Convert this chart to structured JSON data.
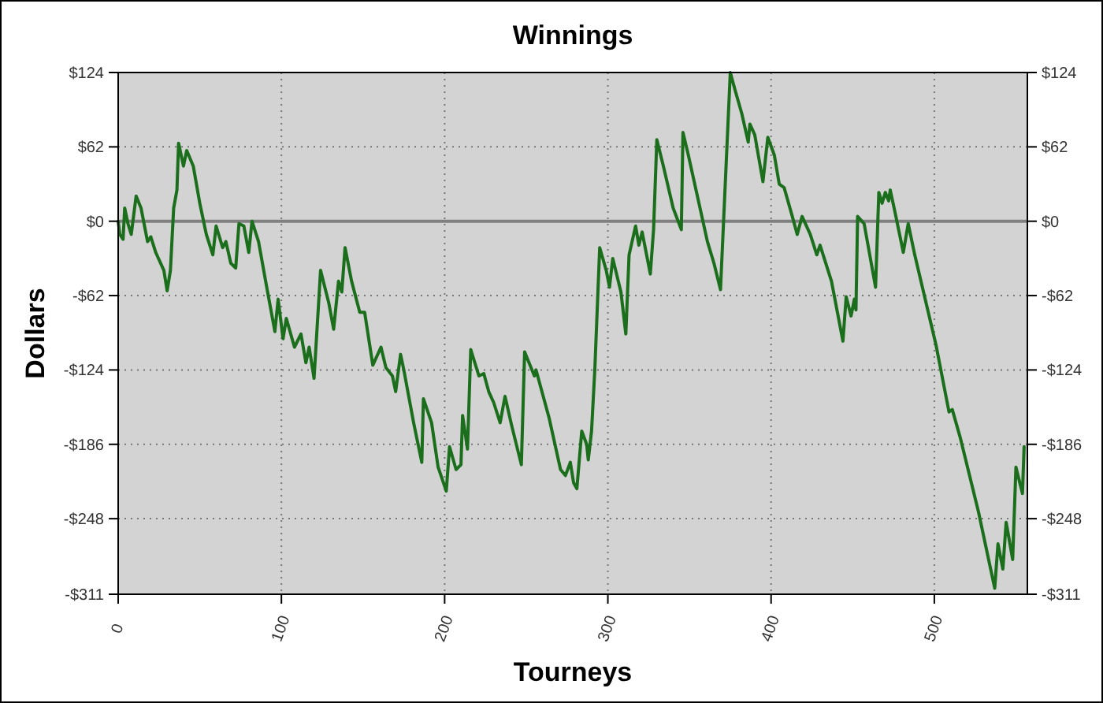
{
  "chart_data": {
    "type": "line",
    "title": "Winnings",
    "xlabel": "Tourneys",
    "ylabel": "Dollars",
    "x": [
      0,
      1,
      3,
      4,
      6,
      8,
      11,
      14,
      18,
      20,
      23,
      28,
      30,
      32,
      34,
      36,
      37,
      40,
      42,
      46,
      50,
      54,
      58,
      60,
      64,
      66,
      69,
      72,
      74,
      77,
      80,
      82,
      86,
      91,
      96,
      98,
      101,
      103,
      108,
      112,
      115,
      117,
      120,
      124,
      129,
      132,
      135,
      137,
      139,
      143,
      148,
      151,
      156,
      161,
      164,
      168,
      170,
      173,
      175,
      181,
      186,
      187,
      192,
      196,
      201,
      203,
      207,
      210,
      211,
      214,
      216,
      221,
      224,
      227,
      230,
      234,
      237,
      241,
      247,
      249,
      255,
      256,
      264,
      271,
      274,
      277,
      279,
      281,
      284,
      287,
      288,
      290,
      292,
      295,
      299,
      301,
      303,
      308,
      311,
      313,
      317,
      319,
      321,
      326,
      328,
      330,
      334,
      340,
      345,
      346,
      349,
      361,
      365,
      369,
      375,
      378,
      382,
      386,
      387,
      390,
      395,
      398,
      402,
      405,
      408,
      413,
      416,
      419,
      424,
      428,
      430,
      437,
      444,
      446,
      449,
      451,
      452,
      453,
      457,
      464,
      466,
      468,
      470,
      472,
      473,
      476,
      481,
      484,
      488,
      501,
      509,
      511,
      516,
      527,
      537,
      539,
      542,
      544,
      548,
      550,
      552,
      554,
      555
    ],
    "series": [
      {
        "color": "#1b6e1b",
        "values": [
          0,
          -11,
          -15,
          11,
          -2,
          -11,
          21,
          11,
          -17,
          -13,
          -26,
          -41,
          -58,
          -41,
          11,
          26,
          65,
          46,
          59,
          46,
          15,
          -11,
          -28,
          -4,
          -22,
          -17,
          -35,
          -39,
          -2,
          -4,
          -26,
          0,
          -17,
          -55,
          -92,
          -65,
          -98,
          -81,
          -105,
          -94,
          -118,
          -105,
          -131,
          -41,
          -68,
          -90,
          -50,
          -59,
          -22,
          -50,
          -76,
          -76,
          -120,
          -105,
          -122,
          -129,
          -142,
          -111,
          -124,
          -168,
          -201,
          -148,
          -168,
          -205,
          -225,
          -188,
          -207,
          -203,
          -162,
          -190,
          -107,
          -129,
          -127,
          -142,
          -151,
          -168,
          -146,
          -170,
          -203,
          -109,
          -129,
          -124,
          -164,
          -207,
          -212,
          -201,
          -218,
          -223,
          -175,
          -186,
          -199,
          -175,
          -124,
          -22,
          -41,
          -55,
          -31,
          -59,
          -94,
          -28,
          -4,
          -20,
          -9,
          -44,
          -7,
          68,
          46,
          11,
          -7,
          74,
          57,
          -17,
          -35,
          -57,
          124,
          109,
          90,
          66,
          81,
          72,
          33,
          70,
          55,
          31,
          28,
          4,
          -11,
          4,
          -11,
          -28,
          -20,
          -50,
          -100,
          -63,
          -79,
          -65,
          -74,
          4,
          -2,
          -55,
          24,
          15,
          24,
          17,
          26,
          7,
          -26,
          -2,
          -28,
          -103,
          -159,
          -157,
          -181,
          -242,
          -306,
          -269,
          -290,
          -251,
          -282,
          -205,
          -216,
          -227,
          -188
        ]
      }
    ],
    "xlim": [
      0,
      557
    ],
    "xticks": [
      0,
      100,
      200,
      300,
      400,
      500
    ],
    "ylim": [
      -311,
      124
    ],
    "yticks": [
      {
        "value": -311,
        "label": "-$311"
      },
      {
        "value": -248,
        "label": "-$248"
      },
      {
        "value": -186,
        "label": "-$186"
      },
      {
        "value": -124,
        "label": "-$124"
      },
      {
        "value": -62,
        "label": "-$62"
      },
      {
        "value": 0,
        "label": "$0"
      },
      {
        "value": 62,
        "label": "$62"
      },
      {
        "value": 124,
        "label": "$124"
      }
    ],
    "y2lim": [
      -311,
      124
    ],
    "y2ticks": [
      {
        "value": -311,
        "label": "-$311"
      },
      {
        "value": -248,
        "label": "-$248"
      },
      {
        "value": -186,
        "label": "-$186"
      },
      {
        "value": -124,
        "label": "-$124"
      },
      {
        "value": -62,
        "label": "-$62"
      },
      {
        "value": 0,
        "label": "$0"
      },
      {
        "value": 62,
        "label": "$62"
      },
      {
        "value": 124,
        "label": "$124"
      }
    ],
    "grid": true,
    "marker": "none",
    "line_style": "solid",
    "ref_lines": [
      {
        "axis": "y",
        "value": 0,
        "color": "#808080"
      }
    ]
  }
}
